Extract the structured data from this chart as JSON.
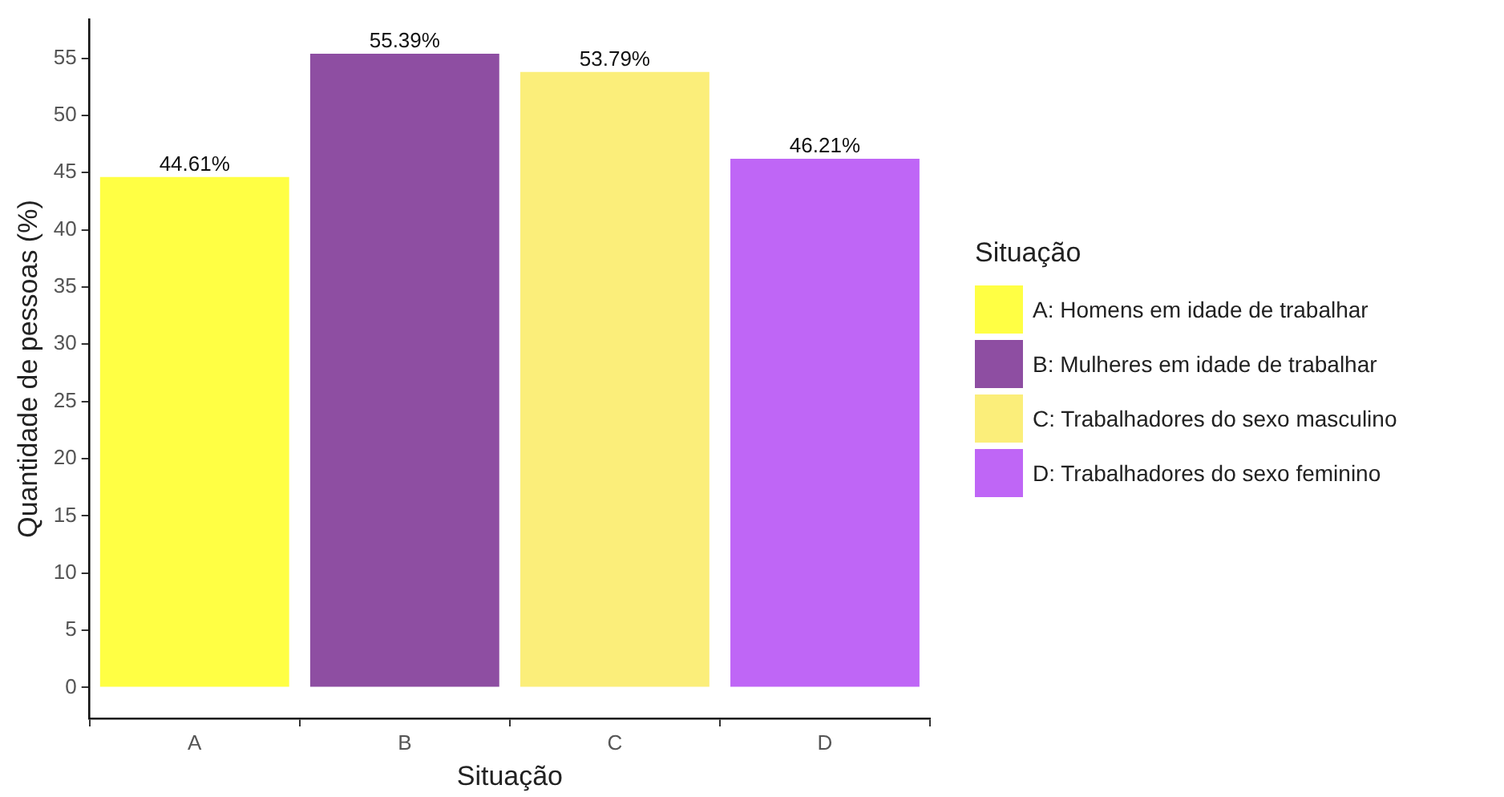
{
  "chart_data": {
    "type": "bar",
    "stacked": true,
    "xlabel": "Situação",
    "ylabel": "Quantidade de pessoas (%)",
    "legend_title": "Situação",
    "legend": "right",
    "grid": false,
    "categories": [
      "A",
      "B",
      "C",
      "D"
    ],
    "ylim": [
      -2.7,
      58.4
    ],
    "yticks": [
      0,
      5,
      10,
      15,
      20,
      25,
      30,
      35,
      40,
      45,
      50,
      55
    ],
    "series": [
      {
        "name": "A: Homens em idade de trabalhar",
        "color": "#ffff44",
        "values": [
          44.61,
          null,
          null,
          null
        ],
        "value_labels": [
          "44.61%",
          null,
          null,
          null
        ]
      },
      {
        "name": "B: Mulheres em idade de trabalhar",
        "color": "#8e4ea2",
        "values": [
          null,
          55.39,
          null,
          null
        ],
        "value_labels": [
          null,
          "55.39%",
          null,
          null
        ]
      },
      {
        "name": "C: Trabalhadores do sexo masculino",
        "color": "#fbee7a",
        "values": [
          null,
          null,
          53.79,
          null
        ],
        "value_labels": [
          null,
          null,
          "53.79%",
          null
        ]
      },
      {
        "name": "D: Trabalhadores do sexo feminino",
        "color": "#bf66f6",
        "values": [
          null,
          null,
          null,
          46.21
        ],
        "value_labels": [
          null,
          null,
          null,
          "46.21%"
        ]
      }
    ]
  }
}
